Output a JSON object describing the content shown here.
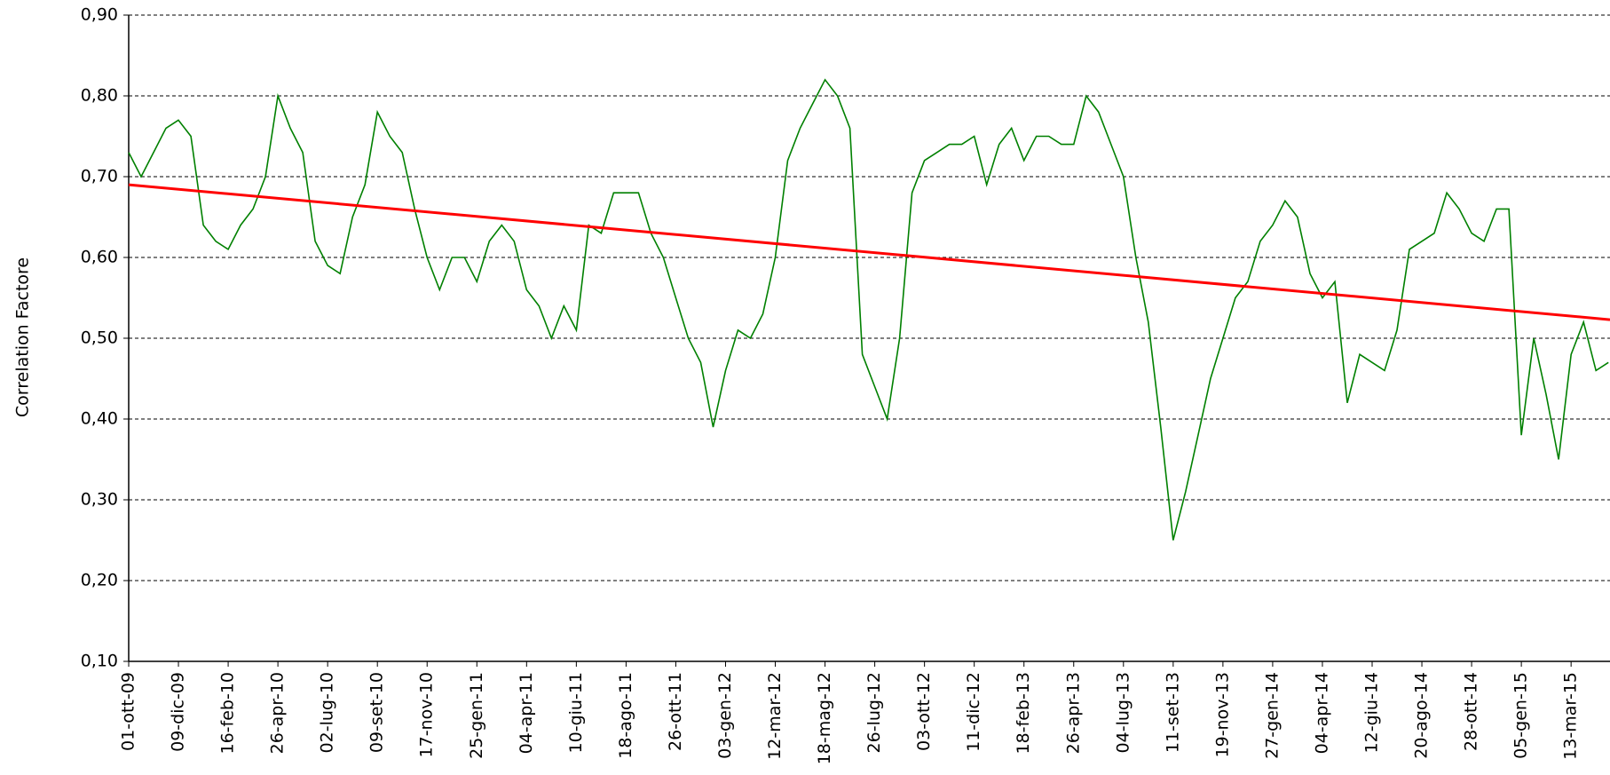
{
  "chart_data": {
    "type": "line",
    "y_label": "Correlation Factore",
    "ylim": [
      0.1,
      0.9
    ],
    "yticks": [
      {
        "value": 0.1,
        "label": "0,10"
      },
      {
        "value": 0.2,
        "label": "0,20"
      },
      {
        "value": 0.3,
        "label": "0,30"
      },
      {
        "value": 0.4,
        "label": "0,40"
      },
      {
        "value": 0.5,
        "label": "0,50"
      },
      {
        "value": 0.6,
        "label": "0,60"
      },
      {
        "value": 0.7,
        "label": "0,70"
      },
      {
        "value": 0.8,
        "label": "0,80"
      },
      {
        "value": 0.9,
        "label": "0,90"
      }
    ],
    "grid": true,
    "categories": [
      "01-ott-09",
      null,
      null,
      null,
      "09-dic-09",
      null,
      null,
      null,
      "16-feb-10",
      null,
      null,
      null,
      "26-apr-10",
      null,
      null,
      null,
      "02-lug-10",
      null,
      null,
      null,
      "09-set-10",
      null,
      null,
      null,
      "17-nov-10",
      null,
      null,
      null,
      "25-gen-11",
      null,
      null,
      null,
      "04-apr-11",
      null,
      null,
      null,
      "10-giu-11",
      null,
      null,
      null,
      "18-ago-11",
      null,
      null,
      null,
      "26-ott-11",
      null,
      null,
      null,
      "03-gen-12",
      null,
      null,
      null,
      "12-mar-12",
      null,
      null,
      null,
      "18-mag-12",
      null,
      null,
      null,
      "26-lug-12",
      null,
      null,
      null,
      "03-ott-12",
      null,
      null,
      null,
      "11-dic-12",
      null,
      null,
      null,
      "18-feb-13",
      null,
      null,
      null,
      "26-apr-13",
      null,
      null,
      null,
      "04-lug-13",
      null,
      null,
      null,
      "11-set-13",
      null,
      null,
      null,
      "19-nov-13",
      null,
      null,
      null,
      "27-gen-14",
      null,
      null,
      null,
      "04-apr-14",
      null,
      null,
      null,
      "12-giu-14",
      null,
      null,
      null,
      "20-ago-14",
      null,
      null,
      null,
      "28-ott-14",
      null,
      null,
      null,
      "05-gen-15",
      null,
      null,
      null,
      "13-mar-15",
      null,
      null,
      null
    ],
    "series": [
      {
        "color": "#008000",
        "values": [
          0.73,
          0.7,
          0.73,
          0.76,
          0.77,
          0.75,
          0.64,
          0.62,
          0.61,
          0.64,
          0.66,
          0.7,
          0.8,
          0.76,
          0.73,
          0.62,
          0.59,
          0.58,
          0.65,
          0.69,
          0.78,
          0.75,
          0.73,
          0.66,
          0.6,
          0.56,
          0.6,
          0.6,
          0.57,
          0.62,
          0.64,
          0.62,
          0.56,
          0.54,
          0.5,
          0.54,
          0.51,
          0.64,
          0.63,
          0.68,
          0.68,
          0.68,
          0.63,
          0.6,
          0.55,
          0.5,
          0.47,
          0.39,
          0.46,
          0.51,
          0.5,
          0.53,
          0.6,
          0.72,
          0.76,
          0.79,
          0.82,
          0.8,
          0.76,
          0.48,
          0.44,
          0.4,
          0.5,
          0.68,
          0.72,
          0.73,
          0.74,
          0.74,
          0.75,
          0.69,
          0.74,
          0.76,
          0.72,
          0.75,
          0.75,
          0.74,
          0.74,
          0.8,
          0.78,
          0.74,
          0.7,
          0.6,
          0.52,
          0.39,
          0.25,
          0.31,
          0.38,
          0.45,
          0.5,
          0.55,
          0.57,
          0.62,
          0.64,
          0.67,
          0.65,
          0.58,
          0.55,
          0.57,
          0.42,
          0.48,
          0.47,
          0.46,
          0.51,
          0.61,
          0.62,
          0.63,
          0.68,
          0.66,
          0.63,
          0.62,
          0.66,
          0.66,
          0.38,
          0.5,
          0.43,
          0.35,
          0.48,
          0.52,
          0.46,
          0.47
        ]
      }
    ],
    "trendline": {
      "color": "#ff0000",
      "values": [
        0.69,
        0.523
      ]
    }
  }
}
